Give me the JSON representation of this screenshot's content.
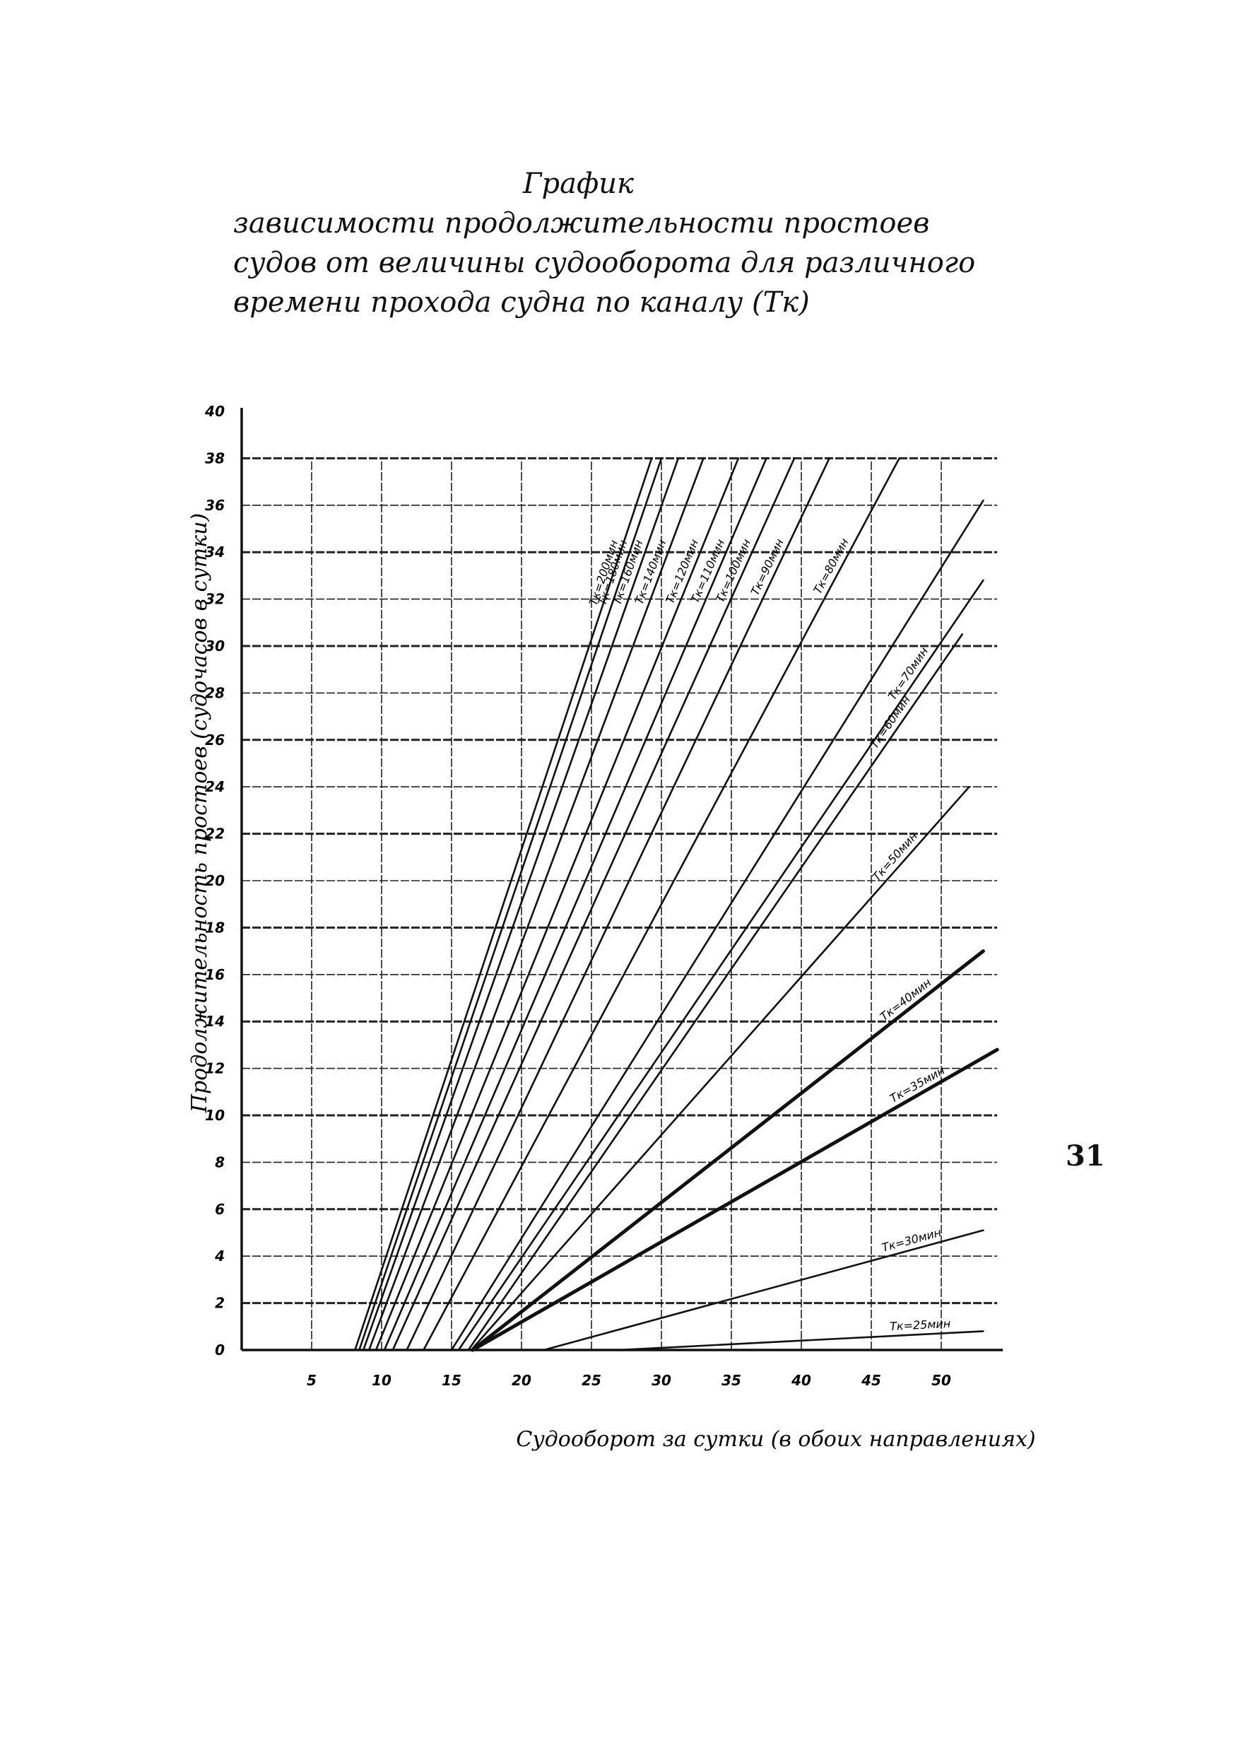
{
  "title_lines": [
    "График",
    "зависимости продолжительности простоев",
    "судов от величины судооборота для различного",
    "времени прохода судна по каналу (Тк)"
  ],
  "page_number": "31",
  "chart_data": {
    "type": "line",
    "xlabel": "Судооборот за сутки (в обоих направлениях)",
    "ylabel": "Продолжительность простоев (судочасов в сутки)",
    "x_ticks": [
      5,
      10,
      15,
      20,
      25,
      30,
      35,
      40,
      45,
      50
    ],
    "y_ticks": [
      0,
      2,
      4,
      6,
      8,
      10,
      12,
      14,
      16,
      18,
      20,
      22,
      24,
      26,
      28,
      30,
      32,
      34,
      36,
      38,
      40
    ],
    "xlim": [
      0,
      54
    ],
    "ylim": [
      0,
      40
    ],
    "grid": true,
    "series": [
      {
        "name": "Тк=200мин",
        "x": [
          8.1,
          29.3
        ],
        "y": [
          0,
          38
        ]
      },
      {
        "name": "Тк=180мин",
        "x": [
          8.4,
          30.0
        ],
        "y": [
          0,
          38
        ]
      },
      {
        "name": "Тк=160мин",
        "x": [
          8.7,
          31.2
        ],
        "y": [
          0,
          38
        ]
      },
      {
        "name": "Тк=140мин",
        "x": [
          9.1,
          33.0
        ],
        "y": [
          0,
          38
        ]
      },
      {
        "name": "Тк=120мин",
        "x": [
          9.6,
          35.5
        ],
        "y": [
          0,
          38
        ]
      },
      {
        "name": "Тк=110мин",
        "x": [
          10.2,
          37.5
        ],
        "y": [
          0,
          38
        ]
      },
      {
        "name": "Тк=100мин",
        "x": [
          10.8,
          39.5
        ],
        "y": [
          0,
          38
        ]
      },
      {
        "name": "Тк=90мин",
        "x": [
          11.8,
          42.0
        ],
        "y": [
          0,
          38
        ]
      },
      {
        "name": "Тк=80мин",
        "x": [
          13.0,
          47.0
        ],
        "y": [
          0,
          38
        ]
      },
      {
        "name": "",
        "x": [
          15.0,
          53.0
        ],
        "y": [
          0,
          36.2
        ]
      },
      {
        "name": "Тк=70мин",
        "x": [
          15.5,
          53.0
        ],
        "y": [
          0,
          32.8
        ]
      },
      {
        "name": "Тк=60мин",
        "x": [
          16.2,
          51.5
        ],
        "y": [
          0,
          30.5
        ]
      },
      {
        "name": "Тк=50мин",
        "x": [
          16.4,
          52.0
        ],
        "y": [
          0,
          24.0
        ]
      },
      {
        "name": "Тк=40мин",
        "x": [
          16.5,
          53.0
        ],
        "y": [
          0,
          17.0
        ]
      },
      {
        "name": "Тк=35мин",
        "x": [
          16.5,
          54.0
        ],
        "y": [
          0,
          12.8
        ]
      },
      {
        "name": "Тк=30мин",
        "x": [
          21.6,
          53.0
        ],
        "y": [
          0,
          5.1
        ]
      },
      {
        "name": "Тк=25мин",
        "x": [
          27.0,
          53.0
        ],
        "y": [
          0,
          0.8
        ]
      }
    ]
  }
}
